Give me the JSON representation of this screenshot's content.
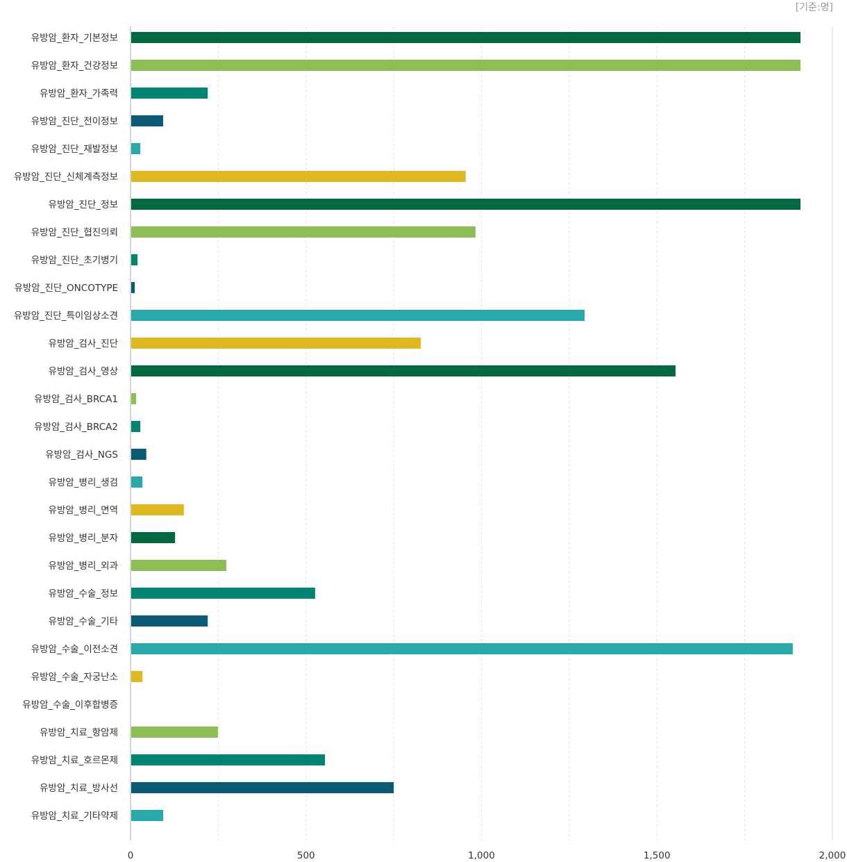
{
  "unit_label": "[기준:명]",
  "chart_data": {
    "type": "bar",
    "orientation": "horizontal",
    "categories": [
      "유방암_환자_기본정보",
      "유방암_환자_건강정보",
      "유방암_환자_가족력",
      "유방암_진단_전이정보",
      "유방암_진단_재발정보",
      "유방암_진단_신체계측정보",
      "유방암_진단_정보",
      "유방암_진단_협진의뢰",
      "유방암_진단_초기병기",
      "유방암_진단_ONCOTYPE",
      "유방암_진단_특이임상소견",
      "유방암_검사_진단",
      "유방암_검사_영상",
      "유방암_검사_BRCA1",
      "유방암_검사_BRCA2",
      "유방암_검사_NGS",
      "유방암_병리_생검",
      "유방암_병리_면역",
      "유방암_병리_분자",
      "유방암_병리_외과",
      "유방암_수술_정보",
      "유방암_수술_기타",
      "유방암_수술_이전소견",
      "유방암_수술_자궁난소",
      "유방암_수술_이후합병증",
      "유방암_치료_항암제",
      "유방암_치료_호르몬제",
      "유방암_치료_방사선",
      "유방암_치료_기타약제"
    ],
    "values": [
      1909,
      1909,
      220,
      93,
      28,
      955,
      1909,
      983,
      20,
      12,
      1294,
      827,
      1553,
      16,
      28,
      45,
      34,
      152,
      127,
      273,
      526,
      220,
      1887,
      34,
      0,
      249,
      554,
      750,
      93
    ],
    "colors": [
      "#006940",
      "#8dbe55",
      "#008472",
      "#0a5a76",
      "#28a9ac",
      "#e0b822"
    ],
    "xlim": [
      0,
      2000
    ],
    "xticks": [
      0,
      500,
      1000,
      1500,
      2000
    ],
    "xtick_labels": [
      "0",
      "500",
      "1,000",
      "1,500",
      "2,000"
    ],
    "grid": "vertical dashed every 250",
    "legend": "none"
  }
}
